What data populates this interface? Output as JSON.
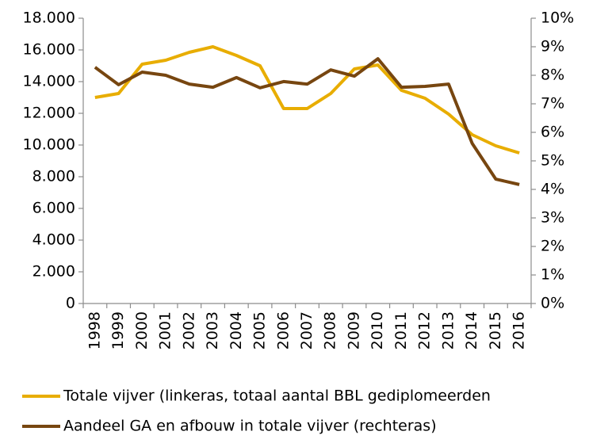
{
  "chart_data": {
    "type": "line",
    "categories": [
      "1998",
      "1999",
      "2000",
      "2001",
      "2002",
      "2003",
      "2004",
      "2005",
      "2006",
      "2007",
      "2008",
      "2009",
      "2010",
      "2011",
      "2012",
      "2013",
      "2014",
      "2015",
      "2016"
    ],
    "series": [
      {
        "name": "Totale vijver (linkeras, totaal aantal BBL gediplomeerden",
        "color": "#e8ad00",
        "axis": "y",
        "values": [
          13000,
          13250,
          15100,
          15350,
          15850,
          16200,
          15650,
          15000,
          12300,
          12300,
          13250,
          14800,
          15050,
          13450,
          12950,
          11950,
          10650,
          9950,
          9500
        ]
      },
      {
        "name": "Aandeel GA en afbouw in totale vijver (rechteras)",
        "color": "#774610",
        "axis": "y2",
        "values": [
          8.28,
          7.67,
          8.11,
          8.0,
          7.69,
          7.58,
          7.92,
          7.56,
          7.78,
          7.69,
          8.19,
          7.97,
          8.58,
          7.58,
          7.61,
          7.69,
          5.61,
          4.36,
          4.17
        ]
      }
    ],
    "ylim": [
      0,
      18000
    ],
    "yticks": [
      0,
      {
        "value": 2000,
        "label": "2.000"
      },
      {
        "value": 4000,
        "label": "4.000"
      },
      {
        "value": 6000,
        "label": "6.000"
      },
      {
        "value": 8000,
        "label": "8.000"
      },
      {
        "value": 10000,
        "label": "10.000"
      },
      {
        "value": 12000,
        "label": "12.000"
      },
      {
        "value": 14000,
        "label": "14.000"
      },
      {
        "value": 16000,
        "label": "16.000"
      },
      {
        "value": 18000,
        "label": "18.000"
      }
    ],
    "y2lim": [
      0,
      10
    ],
    "y2ticks": [
      {
        "value": 0,
        "label": "0%"
      },
      {
        "value": 1,
        "label": "1%"
      },
      {
        "value": 2,
        "label": "2%"
      },
      {
        "value": 3,
        "label": "3%"
      },
      {
        "value": 4,
        "label": "4%"
      },
      {
        "value": 5,
        "label": "5%"
      },
      {
        "value": 6,
        "label": "6%"
      },
      {
        "value": 7,
        "label": "7%"
      },
      {
        "value": 8,
        "label": "8%"
      },
      {
        "value": 9,
        "label": "9%"
      },
      {
        "value": 10,
        "label": "10%"
      }
    ],
    "legend": "bottom"
  }
}
